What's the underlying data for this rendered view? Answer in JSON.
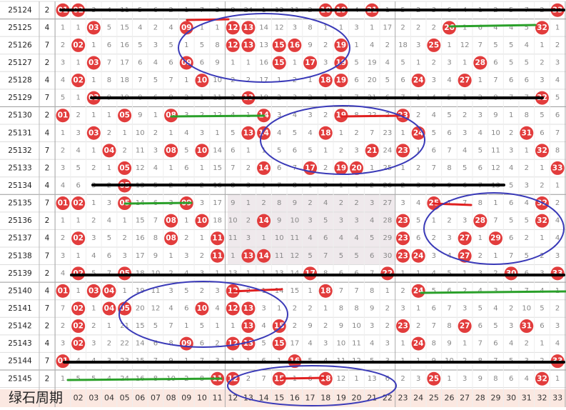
{
  "rows": [
    {
      "period": "25124",
      "count": 2,
      "cells": [
        "01",
        "02",
        3,
        4,
        11,
        5,
        6,
        2,
        1,
        7,
        3,
        8,
        24,
        1,
        13,
        11,
        2,
        "18",
        "19",
        4,
        "21",
        1,
        5,
        2,
        3,
        6,
        4,
        1,
        2,
        5,
        7,
        2,
        "33"
      ]
    },
    {
      "period": "25125",
      "count": 4,
      "cells": [
        1,
        1,
        "03",
        5,
        15,
        4,
        2,
        4,
        "09",
        1,
        1,
        "12",
        "13",
        14,
        12,
        3,
        8,
        1,
        1,
        3,
        1,
        17,
        2,
        2,
        2,
        "26",
        1,
        6,
        4,
        4,
        5,
        "32",
        1
      ]
    },
    {
      "period": "25126",
      "count": 7,
      "cells": [
        2,
        "02",
        1,
        6,
        16,
        5,
        3,
        5,
        1,
        5,
        8,
        "12",
        "13",
        13,
        "15",
        "16",
        9,
        2,
        "19",
        1,
        4,
        2,
        18,
        3,
        "25",
        1,
        12,
        7,
        5,
        5,
        4,
        1,
        2
      ]
    },
    {
      "period": "25127",
      "count": 2,
      "cells": [
        3,
        1,
        "03",
        7,
        17,
        6,
        4,
        6,
        "09",
        6,
        9,
        1,
        1,
        16,
        "15",
        1,
        "17",
        3,
        "19",
        5,
        19,
        4,
        5,
        1,
        2,
        3,
        1,
        "28",
        6,
        5,
        5,
        2,
        3
      ]
    },
    {
      "period": "25128",
      "count": 4,
      "cells": [
        4,
        "02",
        1,
        8,
        18,
        7,
        5,
        7,
        1,
        "10",
        10,
        2,
        2,
        17,
        1,
        2,
        1,
        "18",
        "19",
        6,
        20,
        5,
        6,
        "24",
        3,
        4,
        "27",
        1,
        7,
        6,
        6,
        3,
        4
      ]
    },
    {
      "period": "25129",
      "count": 7,
      "cells": [
        5,
        1,
        "03",
        9,
        19,
        8,
        6,
        8,
        2,
        1,
        11,
        3,
        "13",
        18,
        2,
        3,
        2,
        1,
        1,
        7,
        21,
        6,
        7,
        1,
        4,
        5,
        1,
        2,
        8,
        7,
        7,
        "32",
        5
      ]
    },
    {
      "period": "25130",
      "count": 2,
      "cells": [
        "01",
        2,
        1,
        1,
        "05",
        9,
        1,
        "08",
        3,
        2,
        12,
        4,
        1,
        "14",
        3,
        4,
        3,
        2,
        "19",
        8,
        22,
        2,
        "23",
        2,
        4,
        5,
        2,
        3,
        9,
        1,
        8,
        5,
        6
      ]
    },
    {
      "period": "25131",
      "count": 4,
      "cells": [
        1,
        3,
        "03",
        2,
        1,
        10,
        2,
        1,
        4,
        3,
        1,
        5,
        "13",
        "14",
        4,
        5,
        4,
        "18",
        1,
        2,
        7,
        23,
        1,
        "24",
        5,
        6,
        3,
        4,
        10,
        2,
        "31",
        6,
        7
      ]
    },
    {
      "period": "25132",
      "count": 7,
      "cells": [
        2,
        4,
        1,
        "04",
        2,
        11,
        3,
        "08",
        5,
        "10",
        14,
        6,
        1,
        1,
        5,
        6,
        5,
        1,
        2,
        3,
        "21",
        24,
        "23",
        1,
        6,
        7,
        4,
        5,
        11,
        3,
        1,
        "32",
        8
      ]
    },
    {
      "period": "25133",
      "count": 2,
      "cells": [
        3,
        5,
        2,
        1,
        "05",
        12,
        4,
        1,
        6,
        1,
        15,
        7,
        2,
        "14",
        6,
        7,
        "17",
        2,
        "19",
        "20",
        1,
        25,
        1,
        2,
        7,
        8,
        5,
        6,
        12,
        4,
        2,
        1,
        "33"
      ]
    },
    {
      "period": "25134",
      "count": 4,
      "cells": [
        4,
        6,
        3,
        2,
        "05",
        13,
        5,
        2,
        7,
        2,
        16,
        8,
        3,
        1,
        7,
        8,
        1,
        3,
        1,
        1,
        2,
        26,
        2,
        3,
        8,
        9,
        6,
        7,
        13,
        5,
        3,
        2,
        1
      ]
    },
    {
      "period": "25135",
      "count": 7,
      "cells": [
        "01",
        "02",
        1,
        3,
        "05",
        14,
        6,
        3,
        "09",
        3,
        17,
        9,
        1,
        2,
        8,
        9,
        2,
        4,
        2,
        2,
        3,
        27,
        3,
        4,
        "25",
        1,
        7,
        8,
        1,
        6,
        4,
        "32",
        2
      ]
    },
    {
      "period": "25136",
      "count": 2,
      "cells": [
        1,
        1,
        2,
        4,
        1,
        15,
        7,
        "08",
        1,
        "10",
        18,
        10,
        2,
        "14",
        9,
        10,
        3,
        5,
        3,
        3,
        4,
        28,
        "23",
        5,
        1,
        2,
        3,
        "28",
        7,
        5,
        5,
        "32",
        4
      ]
    },
    {
      "period": "25137",
      "count": 4,
      "cells": [
        2,
        "02",
        3,
        5,
        2,
        16,
        8,
        "08",
        2,
        1,
        "11",
        11,
        3,
        1,
        10,
        11,
        4,
        6,
        4,
        4,
        5,
        29,
        "23",
        6,
        2,
        3,
        "27",
        1,
        "29",
        6,
        2,
        1,
        4
      ]
    },
    {
      "period": "25138",
      "count": 7,
      "cells": [
        3,
        1,
        4,
        6,
        3,
        17,
        9,
        1,
        3,
        2,
        "11",
        1,
        "13",
        "14",
        11,
        12,
        5,
        7,
        5,
        5,
        6,
        30,
        "23",
        "24",
        3,
        4,
        "27",
        2,
        1,
        7,
        5,
        2,
        3
      ]
    },
    {
      "period": "25139",
      "count": 2,
      "cells": [
        4,
        "02",
        5,
        7,
        "05",
        18,
        10,
        2,
        4,
        3,
        1,
        13,
        1,
        1,
        13,
        14,
        "17",
        8,
        6,
        6,
        7,
        "22",
        1,
        1,
        4,
        5,
        1,
        3,
        2,
        "30",
        6,
        3,
        "33"
      ]
    },
    {
      "period": "25140",
      "count": 4,
      "cells": [
        "01",
        1,
        "03",
        "04",
        1,
        19,
        11,
        3,
        5,
        2,
        3,
        "12",
        2,
        1,
        14,
        15,
        1,
        "18",
        7,
        7,
        8,
        1,
        2,
        "24",
        5,
        6,
        2,
        4,
        3,
        1,
        7,
        4,
        1
      ]
    },
    {
      "period": "25141",
      "count": 7,
      "cells": [
        7,
        "02",
        1,
        "04",
        "05",
        20,
        12,
        4,
        6,
        "10",
        4,
        "12",
        "13",
        3,
        1,
        2,
        2,
        1,
        8,
        8,
        9,
        2,
        3,
        1,
        6,
        7,
        3,
        5,
        4,
        2,
        10,
        5,
        2
      ]
    },
    {
      "period": "25142",
      "count": 2,
      "cells": [
        2,
        "02",
        2,
        1,
        21,
        15,
        5,
        7,
        1,
        5,
        1,
        1,
        "13",
        4,
        "15",
        2,
        9,
        2,
        9,
        10,
        3,
        2,
        "23",
        2,
        7,
        8,
        "27",
        6,
        5,
        3,
        "31",
        6,
        3
      ]
    },
    {
      "period": "25143",
      "count": 4,
      "cells": [
        3,
        "02",
        3,
        2,
        22,
        14,
        6,
        8,
        "09",
        6,
        2,
        "12",
        "13",
        5,
        "15",
        17,
        4,
        3,
        10,
        11,
        4,
        3,
        1,
        "24",
        8,
        9,
        1,
        7,
        6,
        4,
        2,
        1,
        4
      ]
    },
    {
      "period": "25144",
      "count": 7,
      "cells": [
        "01",
        4,
        4,
        3,
        23,
        15,
        7,
        9,
        1,
        7,
        3,
        1,
        1,
        6,
        1,
        "16",
        5,
        4,
        11,
        12,
        5,
        3,
        1,
        1,
        9,
        10,
        2,
        8,
        7,
        5,
        3,
        2,
        "33"
      ]
    },
    {
      "period": "25145",
      "count": 2,
      "cells": [
        1,
        5,
        5,
        4,
        24,
        16,
        8,
        10,
        2,
        8,
        "11",
        "12",
        2,
        7,
        "15",
        1,
        6,
        "18",
        12,
        1,
        13,
        6,
        2,
        3,
        "25",
        1,
        3,
        9,
        8,
        6,
        4,
        "32",
        1
      ]
    }
  ],
  "footer": {
    "label": "绿石周期",
    "numbers": [
      "02",
      "03",
      "04",
      "05",
      "06",
      "07",
      "08",
      "09",
      "10",
      "11",
      "12",
      "13",
      "14",
      "15",
      "16",
      "17",
      "18",
      "19",
      "20",
      "21",
      "22",
      "23",
      "24",
      "25",
      "26",
      "27",
      "28",
      "29",
      "30",
      "31",
      "32",
      "33"
    ]
  }
}
